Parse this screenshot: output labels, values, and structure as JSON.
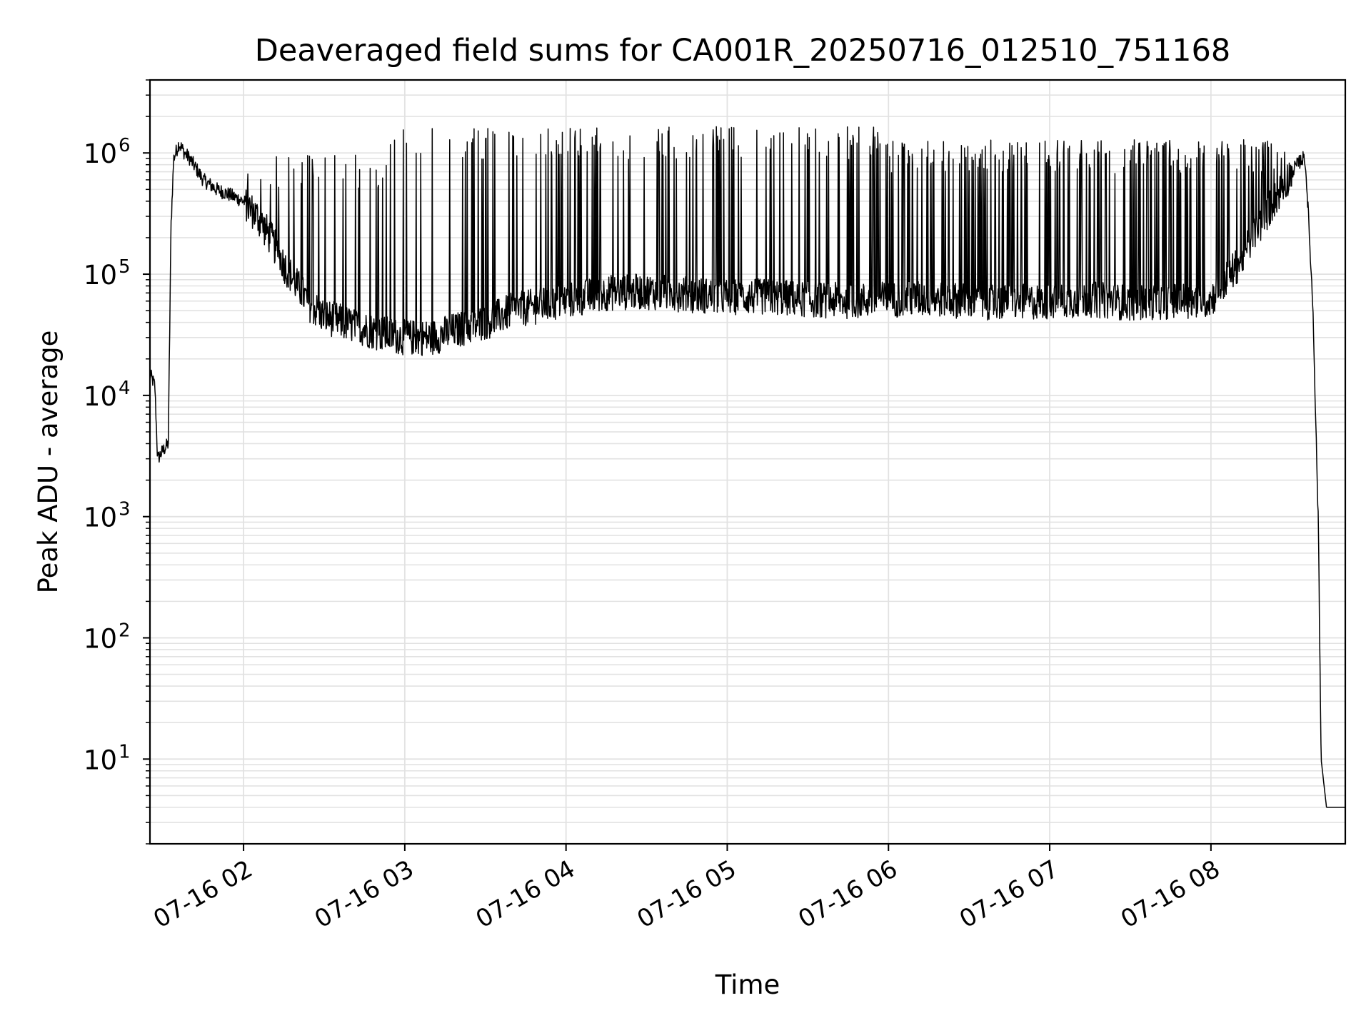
{
  "chart_data": {
    "type": "line",
    "title": "Deaveraged field sums for CA001R_20250716_012510_751168",
    "xlabel": "Time",
    "ylabel": "Peak ADU - average",
    "yscale": "log",
    "ylim": [
      2,
      4000000
    ],
    "xlim": [
      "2025-07-16 01:25:10",
      "2025-07-16 08:50:00"
    ],
    "x_ticks": [
      "07-16 02",
      "07-16 03",
      "07-16 04",
      "07-16 05",
      "07-16 06",
      "07-16 07",
      "07-16 08"
    ],
    "y_ticks": [
      "10^1",
      "10^2",
      "10^3",
      "10^4",
      "10^5",
      "10^6"
    ],
    "grid": true,
    "line_color": "#000000",
    "series": [
      {
        "x": [
          "2025-07-16 01:25:10",
          "2025-07-16 01:27",
          "2025-07-16 01:28",
          "2025-07-16 01:30",
          "2025-07-16 01:32",
          "2025-07-16 01:33",
          "2025-07-16 01:34",
          "2025-07-16 01:36",
          "2025-07-16 01:38",
          "2025-07-16 01:40",
          "2025-07-16 01:45",
          "2025-07-16 01:50",
          "2025-07-16 01:55",
          "2025-07-16 02:00",
          "2025-07-16 02:05",
          "2025-07-16 02:10",
          "2025-07-16 02:15",
          "2025-07-16 02:20",
          "2025-07-16 02:25",
          "2025-07-16 02:30",
          "2025-07-16 02:40",
          "2025-07-16 02:50",
          "2025-07-16 03:00",
          "2025-07-16 03:10",
          "2025-07-16 03:20",
          "2025-07-16 03:30",
          "2025-07-16 03:40",
          "2025-07-16 03:50",
          "2025-07-16 04:00",
          "2025-07-16 04:15",
          "2025-07-16 04:30",
          "2025-07-16 04:45",
          "2025-07-16 05:00",
          "2025-07-16 05:15",
          "2025-07-16 05:30",
          "2025-07-16 05:45",
          "2025-07-16 06:00",
          "2025-07-16 06:15",
          "2025-07-16 06:30",
          "2025-07-16 06:45",
          "2025-07-16 07:00",
          "2025-07-16 07:15",
          "2025-07-16 07:30",
          "2025-07-16 07:45",
          "2025-07-16 08:00",
          "2025-07-16 08:10",
          "2025-07-16 08:20",
          "2025-07-16 08:30",
          "2025-07-16 08:34",
          "2025-07-16 08:35",
          "2025-07-16 08:36",
          "2025-07-16 08:38",
          "2025-07-16 08:40",
          "2025-07-16 08:41",
          "2025-07-16 08:43",
          "2025-07-16 08:50"
        ],
        "y": [
          15000,
          12000,
          3000,
          3500,
          4000,
          250000,
          900000,
          1200000,
          1000000,
          900000,
          600000,
          500000,
          450000,
          400000,
          300000,
          200000,
          120000,
          80000,
          55000,
          45000,
          38000,
          33000,
          30000,
          30000,
          35000,
          40000,
          50000,
          55000,
          60000,
          70000,
          72000,
          68000,
          65000,
          65000,
          62000,
          60000,
          62000,
          63000,
          60000,
          58000,
          60000,
          62000,
          58000,
          60000,
          62000,
          120000,
          300000,
          700000,
          900000,
          900000,
          400000,
          50000,
          800,
          10,
          4,
          4
        ]
      }
    ]
  }
}
